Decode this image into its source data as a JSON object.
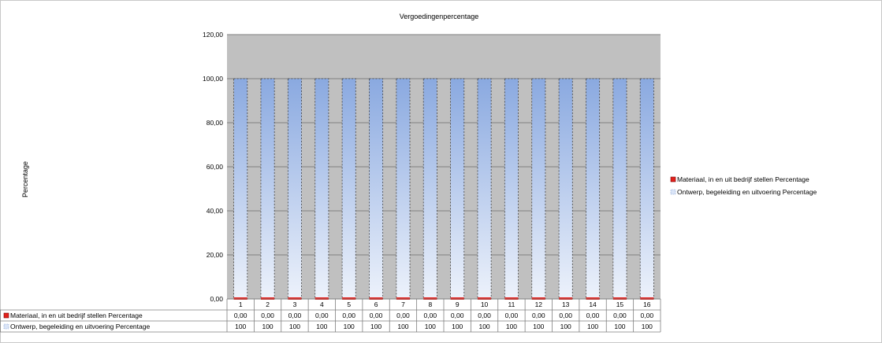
{
  "chart_data": {
    "type": "bar",
    "stacked": true,
    "title": "Vergoedingenpercentage",
    "xlabel": "",
    "ylabel": "Percentage",
    "ylim": [
      0,
      120
    ],
    "yticks": [
      "0,00",
      "20,00",
      "40,00",
      "60,00",
      "80,00",
      "100,00",
      "120,00"
    ],
    "categories": [
      "1",
      "2",
      "3",
      "4",
      "5",
      "6",
      "7",
      "8",
      "9",
      "10",
      "11",
      "12",
      "13",
      "14",
      "15",
      "16"
    ],
    "series": [
      {
        "name": "Materiaal, in en uit bedrijf stellen Percentage",
        "color": "#e2211c",
        "values": [
          0,
          0,
          0,
          0,
          0,
          0,
          0,
          0,
          0,
          0,
          0,
          0,
          0,
          0,
          0,
          0
        ],
        "labels": [
          "0,00",
          "0,00",
          "0,00",
          "0,00",
          "0,00",
          "0,00",
          "0,00",
          "0,00",
          "0,00",
          "0,00",
          "0,00",
          "0,00",
          "0,00",
          "0,00",
          "0,00",
          "0,00"
        ]
      },
      {
        "name": "Ontwerp, begeleiding en uitvoering Percentage",
        "color": "#8aa9e0",
        "values": [
          100,
          100,
          100,
          100,
          100,
          100,
          100,
          100,
          100,
          100,
          100,
          100,
          100,
          100,
          100,
          100
        ],
        "labels": [
          "100",
          "100",
          "100",
          "100",
          "100",
          "100",
          "100",
          "100",
          "100",
          "100",
          "100",
          "100",
          "100",
          "100",
          "100",
          "100"
        ]
      }
    ],
    "grid": true,
    "legend": "right",
    "data_table": true
  }
}
